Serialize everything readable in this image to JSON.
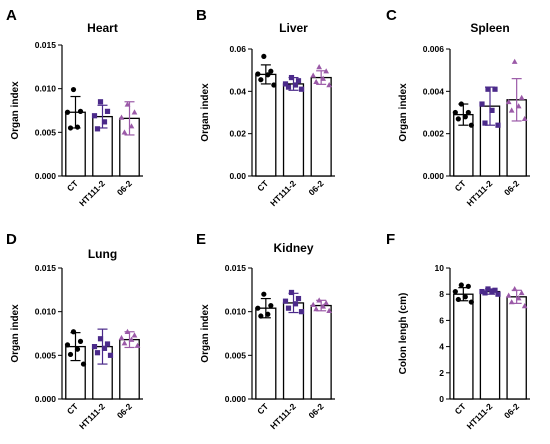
{
  "colors": {
    "CT": "#000000",
    "HT111-2": "#4b2a8a",
    "06-2": "#9b5aa8"
  },
  "chart_data": [
    {
      "letter": "A",
      "type": "bar",
      "title": "Heart",
      "ylabel": "Organ index",
      "categories": [
        "CT",
        "HT111-2",
        "06-2"
      ],
      "ylim": [
        0,
        0.015
      ],
      "yticks": [
        0,
        0.005,
        0.01,
        0.015
      ],
      "ytick_labels": [
        "0.000",
        "0.005",
        "0.010",
        "0.015"
      ],
      "values": [
        0.0073,
        0.0068,
        0.0066
      ],
      "sd": [
        0.0018,
        0.0013,
        0.0019
      ],
      "points": [
        [
          0.0099,
          0.0074,
          0.0073,
          0.0056,
          0.0055
        ],
        [
          0.0085,
          0.0074,
          0.0069,
          0.0062,
          0.0054
        ],
        [
          0.0082,
          0.0073,
          0.0067,
          0.0057,
          0.005
        ]
      ]
    },
    {
      "letter": "B",
      "type": "bar",
      "title": "Liver",
      "ylabel": "Organ index",
      "categories": [
        "CT",
        "HT111-2",
        "06-2"
      ],
      "ylim": [
        0,
        0.06
      ],
      "yticks": [
        0,
        0.02,
        0.04,
        0.06
      ],
      "ytick_labels": [
        "0.00",
        "0.02",
        "0.04",
        "0.06"
      ],
      "values": [
        0.048,
        0.0435,
        0.0465
      ],
      "sd": [
        0.0045,
        0.003,
        0.0032
      ],
      "points": [
        [
          0.0565,
          0.0495,
          0.0482,
          0.0478,
          0.0455,
          0.043
        ],
        [
          0.0465,
          0.045,
          0.0435,
          0.043,
          0.042,
          0.041
        ],
        [
          0.0515,
          0.0495,
          0.0475,
          0.046,
          0.0445,
          0.043
        ]
      ]
    },
    {
      "letter": "C",
      "type": "bar",
      "title": "Spleen",
      "ylabel": "Organ index",
      "categories": [
        "CT",
        "HT111-2",
        "06-2"
      ],
      "ylim": [
        0,
        0.006
      ],
      "yticks": [
        0,
        0.002,
        0.004,
        0.006
      ],
      "ytick_labels": [
        "0.000",
        "0.002",
        "0.004",
        "0.006"
      ],
      "values": [
        0.0029,
        0.0033,
        0.0036
      ],
      "sd": [
        0.0005,
        0.0009,
        0.001
      ],
      "points": [
        [
          0.0034,
          0.003,
          0.003,
          0.0028,
          0.0027,
          0.0024
        ],
        [
          0.0041,
          0.0041,
          0.0034,
          0.0031,
          0.0025,
          0.0024
        ],
        [
          0.0054,
          0.0037,
          0.0035,
          0.0033,
          0.0031,
          0.0027
        ]
      ]
    },
    {
      "letter": "D",
      "type": "bar",
      "title": "Lung",
      "ylabel": "Organ index",
      "categories": [
        "CT",
        "HT111-2",
        "06-2"
      ],
      "ylim": [
        0,
        0.015
      ],
      "yticks": [
        0,
        0.005,
        0.01,
        0.015
      ],
      "ytick_labels": [
        "0.000",
        "0.005",
        "0.010",
        "0.015"
      ],
      "values": [
        0.006,
        0.006,
        0.0068
      ],
      "sd": [
        0.0016,
        0.002,
        0.0009
      ],
      "points": [
        [
          0.0077,
          0.0066,
          0.0062,
          0.0057,
          0.0051,
          0.004
        ],
        [
          0.0069,
          0.0063,
          0.006,
          0.0058,
          0.0053,
          0.005
        ],
        [
          0.0077,
          0.0073,
          0.007,
          0.0068,
          0.0064,
          0.0061
        ]
      ]
    },
    {
      "letter": "E",
      "type": "bar",
      "title": "Kidney",
      "ylabel": "Organ index",
      "categories": [
        "CT",
        "HT111-2",
        "06-2"
      ],
      "ylim": [
        0,
        0.015
      ],
      "yticks": [
        0,
        0.005,
        0.01,
        0.015
      ],
      "ytick_labels": [
        "0.000",
        "0.005",
        "0.010",
        "0.015"
      ],
      "values": [
        0.0104,
        0.011,
        0.0107
      ],
      "sd": [
        0.0011,
        0.0011,
        0.0006
      ],
      "points": [
        [
          0.012,
          0.0107,
          0.0104,
          0.0097,
          0.0095
        ],
        [
          0.0122,
          0.0115,
          0.0112,
          0.0109,
          0.0104,
          0.01
        ],
        [
          0.0113,
          0.011,
          0.0108,
          0.0106,
          0.0103,
          0.0101
        ]
      ]
    },
    {
      "letter": "F",
      "type": "bar",
      "title": "",
      "ylabel": "Colon lengh (cm)",
      "categories": [
        "CT",
        "HT111-2",
        "06-2"
      ],
      "ylim": [
        0,
        10
      ],
      "yticks": [
        0,
        2,
        4,
        6,
        8,
        10
      ],
      "ytick_labels": [
        "0",
        "2",
        "4",
        "6",
        "8",
        "10"
      ],
      "values": [
        8.0,
        8.2,
        7.8
      ],
      "sd": [
        0.5,
        0.2,
        0.5
      ],
      "points": [
        [
          8.7,
          8.6,
          8.2,
          7.8,
          7.6,
          7.4
        ],
        [
          8.4,
          8.3,
          8.2,
          8.2,
          8.1,
          8.0
        ],
        [
          8.4,
          8.1,
          7.9,
          7.7,
          7.4,
          7.1
        ]
      ]
    }
  ]
}
